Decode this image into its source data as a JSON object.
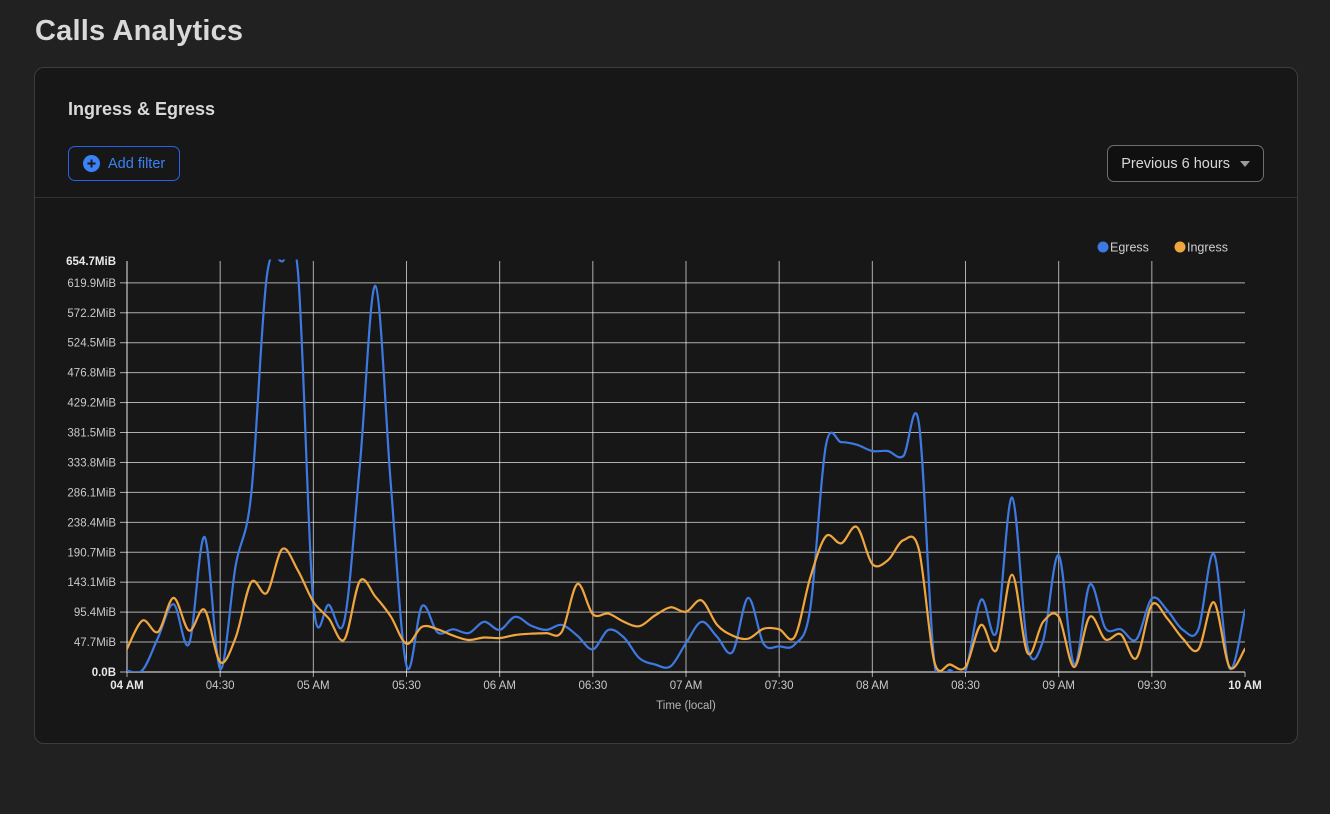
{
  "page": {
    "title": "Calls Analytics"
  },
  "panel": {
    "title": "Ingress & Egress",
    "toolbar": {
      "add_filter_label": "Add filter",
      "time_range_label": "Previous 6 hours"
    }
  },
  "colors": {
    "egress_blue": "#3D79E0",
    "ingress_orange": "#F0A63E",
    "accent_blue": "#3b82f6",
    "grid": "rgba(255,255,255,0.65)",
    "tick_label": "#c9c9c9",
    "tick_label_bold": "#e8e8e8"
  },
  "chart_data": {
    "type": "line",
    "title": "Ingress & Egress",
    "xlabel": "Time (local)",
    "ylabel": "",
    "y_unit": "MiB",
    "x_start": "04:00",
    "x_end": "10:00",
    "x_step_minutes": 5,
    "x": [
      0,
      5,
      10,
      15,
      20,
      25,
      30,
      35,
      40,
      45,
      50,
      55,
      60,
      65,
      70,
      75,
      80,
      85,
      90,
      95,
      100,
      105,
      110,
      115,
      120,
      125,
      130,
      135,
      140,
      145,
      150,
      155,
      160,
      165,
      170,
      175,
      180,
      185,
      190,
      195,
      200,
      205,
      210,
      215,
      220,
      225,
      230,
      235,
      240,
      245,
      250,
      255,
      260,
      265,
      270,
      275,
      280,
      285,
      290,
      295,
      300,
      305,
      310,
      315,
      320,
      325,
      330,
      335,
      340,
      345,
      350,
      355,
      360
    ],
    "series": [
      {
        "name": "Egress",
        "color": "#3D79E0",
        "values": [
          2,
          3,
          55,
          108,
          45,
          215,
          5,
          170,
          283,
          630,
          654,
          640,
          110,
          107,
          82,
          330,
          615,
          295,
          10,
          105,
          63,
          68,
          62,
          80,
          67,
          88,
          74,
          67,
          75,
          58,
          36,
          67,
          55,
          22,
          12,
          9,
          46,
          80,
          56,
          32,
          118,
          45,
          41,
          44,
          100,
          360,
          366,
          362,
          352,
          352,
          344,
          396,
          15,
          3,
          2,
          115,
          64,
          278,
          40,
          50,
          186,
          12,
          139,
          70,
          68,
          52,
          117,
          98,
          67,
          68,
          188,
          6,
          99
        ]
      },
      {
        "name": "Ingress",
        "color": "#F0A63E",
        "values": [
          37,
          82,
          64,
          118,
          66,
          99,
          16,
          55,
          143,
          126,
          196,
          162,
          112,
          85,
          52,
          145,
          120,
          88,
          45,
          72,
          68,
          58,
          51,
          55,
          54,
          59,
          61,
          62,
          64,
          140,
          92,
          93,
          80,
          73,
          90,
          103,
          96,
          114,
          75,
          58,
          53,
          69,
          68,
          56,
          150,
          216,
          205,
          231,
          172,
          178,
          210,
          195,
          16,
          12,
          8,
          75,
          35,
          155,
          30,
          80,
          88,
          8,
          88,
          52,
          60,
          22,
          107,
          85,
          53,
          36,
          111,
          8,
          37
        ]
      }
    ],
    "ylim": [
      0,
      654.7
    ],
    "yticks": [
      {
        "value": 0,
        "label": "0.0B",
        "bold": true,
        "grid": false
      },
      {
        "value": 47.7,
        "label": "47.7MiB",
        "bold": false,
        "grid": true
      },
      {
        "value": 95.4,
        "label": "95.4MiB",
        "bold": false,
        "grid": true
      },
      {
        "value": 143.1,
        "label": "143.1MiB",
        "bold": false,
        "grid": true
      },
      {
        "value": 190.7,
        "label": "190.7MiB",
        "bold": false,
        "grid": true
      },
      {
        "value": 238.4,
        "label": "238.4MiB",
        "bold": false,
        "grid": true
      },
      {
        "value": 286.1,
        "label": "286.1MiB",
        "bold": false,
        "grid": true
      },
      {
        "value": 333.8,
        "label": "333.8MiB",
        "bold": false,
        "grid": true
      },
      {
        "value": 381.5,
        "label": "381.5MiB",
        "bold": false,
        "grid": true
      },
      {
        "value": 429.2,
        "label": "429.2MiB",
        "bold": false,
        "grid": true
      },
      {
        "value": 476.8,
        "label": "476.8MiB",
        "bold": false,
        "grid": true
      },
      {
        "value": 524.5,
        "label": "524.5MiB",
        "bold": false,
        "grid": true
      },
      {
        "value": 572.2,
        "label": "572.2MiB",
        "bold": false,
        "grid": true
      },
      {
        "value": 619.9,
        "label": "619.9MiB",
        "bold": false,
        "grid": true
      },
      {
        "value": 654.7,
        "label": "654.7MiB",
        "bold": true,
        "grid": false
      }
    ],
    "xticks": [
      {
        "minutes": 0,
        "label": "04 AM",
        "bold": true
      },
      {
        "minutes": 30,
        "label": "04:30",
        "bold": false
      },
      {
        "minutes": 60,
        "label": "05 AM",
        "bold": false
      },
      {
        "minutes": 90,
        "label": "05:30",
        "bold": false
      },
      {
        "minutes": 120,
        "label": "06 AM",
        "bold": false
      },
      {
        "minutes": 150,
        "label": "06:30",
        "bold": false
      },
      {
        "minutes": 180,
        "label": "07 AM",
        "bold": false
      },
      {
        "minutes": 210,
        "label": "07:30",
        "bold": false
      },
      {
        "minutes": 240,
        "label": "08 AM",
        "bold": false
      },
      {
        "minutes": 270,
        "label": "08:30",
        "bold": false
      },
      {
        "minutes": 300,
        "label": "09 AM",
        "bold": false
      },
      {
        "minutes": 330,
        "label": "09:30",
        "bold": false
      },
      {
        "minutes": 360,
        "label": "10 AM",
        "bold": true
      }
    ],
    "legend": [
      "Egress",
      "Ingress"
    ],
    "legend_position": "top-right",
    "grid": true
  }
}
